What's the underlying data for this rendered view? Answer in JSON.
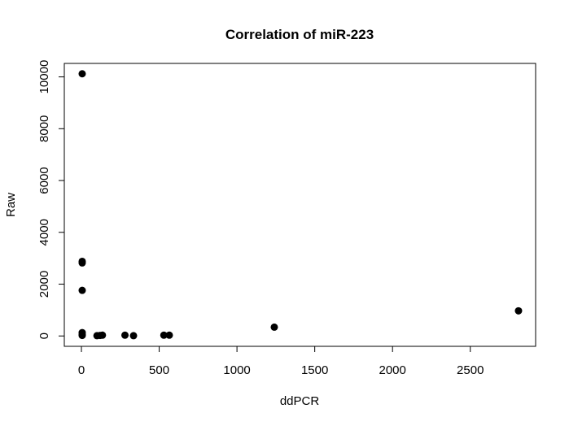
{
  "chart_data": {
    "type": "scatter",
    "title": "Correlation of miR-223",
    "xlabel": "ddPCR",
    "ylabel": "Raw",
    "xlim": [
      -110,
      2920
    ],
    "ylim": [
      -400,
      10520
    ],
    "x_ticks": [
      0,
      500,
      1000,
      1500,
      2000,
      2500
    ],
    "y_ticks": [
      0,
      2000,
      4000,
      6000,
      8000,
      10000
    ],
    "grid": false,
    "legend": "none",
    "marker_color": "#000000",
    "points": [
      {
        "x": 5,
        "y": 10120
      },
      {
        "x": 5,
        "y": 2880
      },
      {
        "x": 5,
        "y": 2820
      },
      {
        "x": 5,
        "y": 1760
      },
      {
        "x": 5,
        "y": 130
      },
      {
        "x": 5,
        "y": 60
      },
      {
        "x": 5,
        "y": 20
      },
      {
        "x": 100,
        "y": 10
      },
      {
        "x": 120,
        "y": 20
      },
      {
        "x": 135,
        "y": 30
      },
      {
        "x": 280,
        "y": 30
      },
      {
        "x": 335,
        "y": 10
      },
      {
        "x": 530,
        "y": 30
      },
      {
        "x": 565,
        "y": 30
      },
      {
        "x": 1240,
        "y": 340
      },
      {
        "x": 2810,
        "y": 970
      }
    ]
  }
}
